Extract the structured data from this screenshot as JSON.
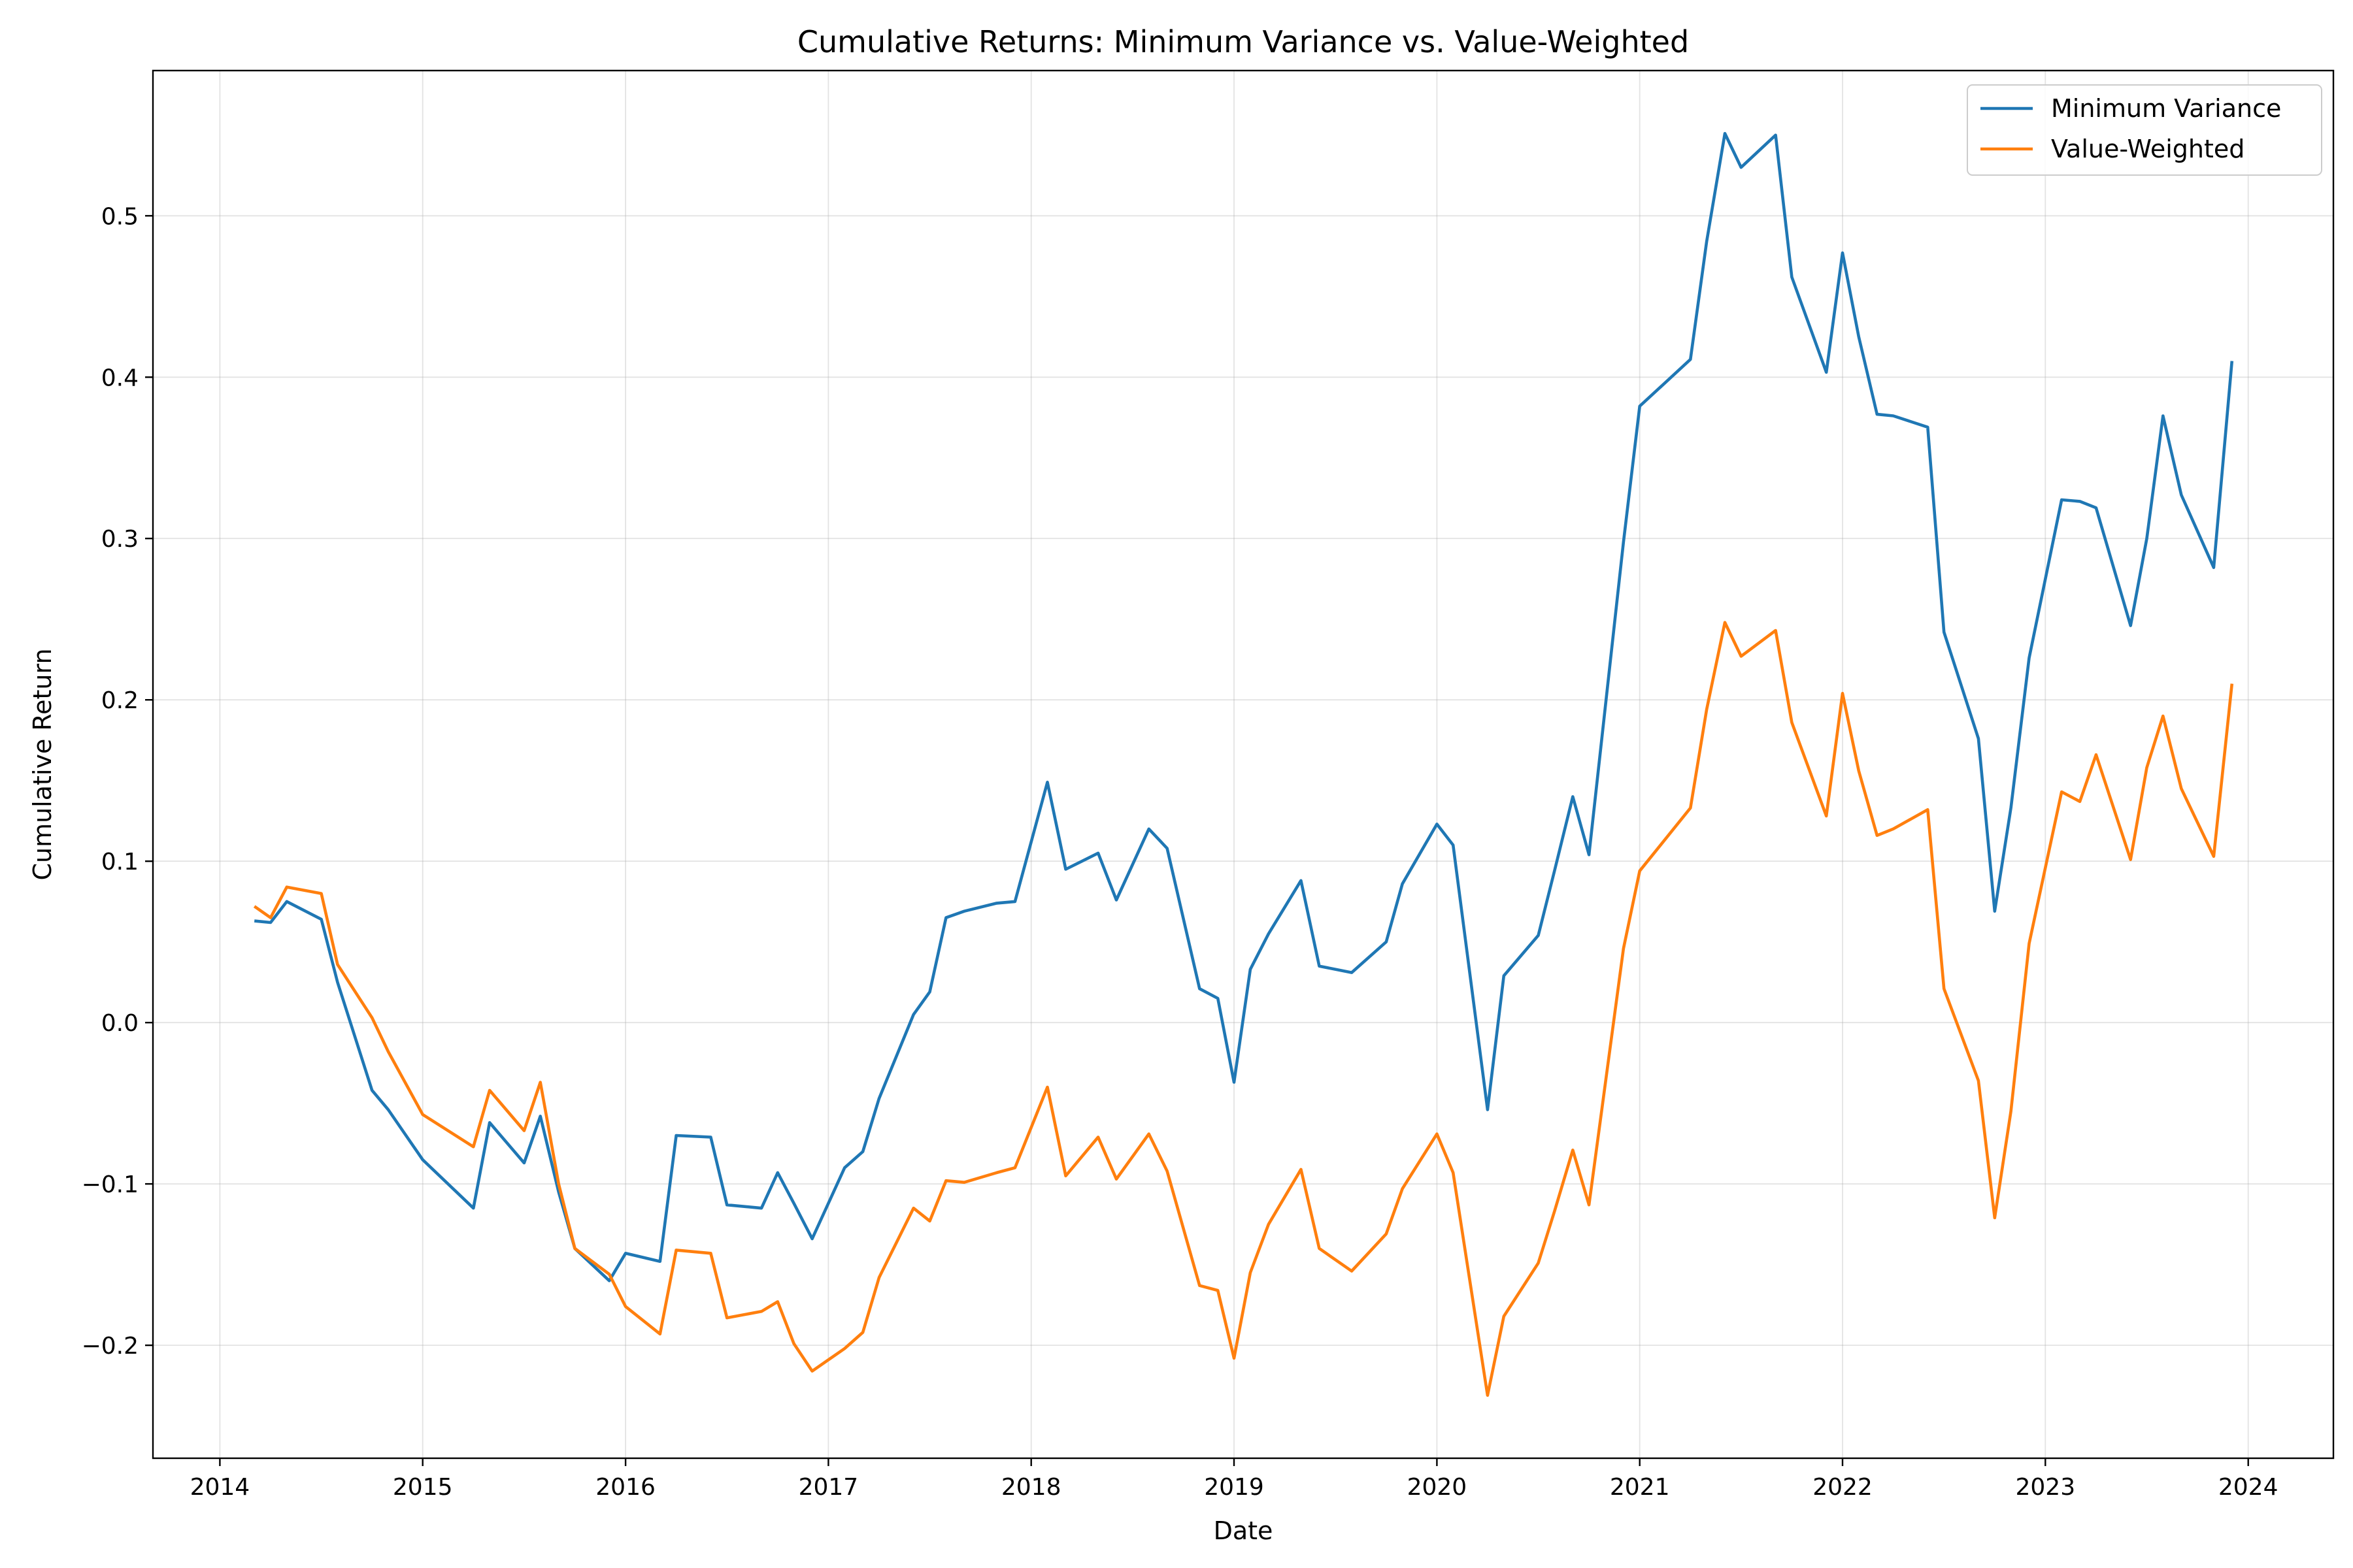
{
  "chart_data": {
    "type": "line",
    "title": "Cumulative Returns: Minimum Variance vs. Value-Weighted",
    "xlabel": "Date",
    "ylabel": "Cumulative Return",
    "xlim": [
      2013.67,
      2024.42
    ],
    "ylim": [
      -0.27,
      0.59
    ],
    "x_ticks": [
      2014,
      2015,
      2016,
      2017,
      2018,
      2019,
      2020,
      2021,
      2022,
      2023,
      2024
    ],
    "x_tick_labels": [
      "2014",
      "2015",
      "2016",
      "2017",
      "2018",
      "2019",
      "2020",
      "2021",
      "2022",
      "2023",
      "2024"
    ],
    "y_ticks": [
      -0.2,
      -0.1,
      0.0,
      0.1,
      0.2,
      0.3,
      0.4,
      0.5
    ],
    "y_tick_labels": [
      "−0.2",
      "−0.1",
      "0.0",
      "0.1",
      "0.2",
      "0.3",
      "0.4",
      "0.5"
    ],
    "grid": true,
    "legend_position": "top-right",
    "series": [
      {
        "name": "Minimum Variance",
        "color": "#1f77b4",
        "points": [
          [
            2014.17,
            0.063
          ],
          [
            2014.25,
            0.062
          ],
          [
            2014.33,
            0.075
          ],
          [
            2014.5,
            0.064
          ],
          [
            2014.58,
            0.025
          ],
          [
            2014.75,
            -0.042
          ],
          [
            2014.83,
            -0.054
          ],
          [
            2015.0,
            -0.085
          ],
          [
            2015.25,
            -0.115
          ],
          [
            2015.33,
            -0.062
          ],
          [
            2015.5,
            -0.087
          ],
          [
            2015.58,
            -0.058
          ],
          [
            2015.67,
            -0.105
          ],
          [
            2015.75,
            -0.14
          ],
          [
            2015.92,
            -0.16
          ],
          [
            2016.0,
            -0.143
          ],
          [
            2016.17,
            -0.148
          ],
          [
            2016.25,
            -0.07
          ],
          [
            2016.42,
            -0.071
          ],
          [
            2016.5,
            -0.113
          ],
          [
            2016.67,
            -0.115
          ],
          [
            2016.75,
            -0.093
          ],
          [
            2016.83,
            -0.112
          ],
          [
            2016.92,
            -0.134
          ],
          [
            2017.08,
            -0.09
          ],
          [
            2017.17,
            -0.08
          ],
          [
            2017.25,
            -0.047
          ],
          [
            2017.42,
            0.005
          ],
          [
            2017.5,
            0.019
          ],
          [
            2017.58,
            0.065
          ],
          [
            2017.67,
            0.069
          ],
          [
            2017.83,
            0.074
          ],
          [
            2017.92,
            0.075
          ],
          [
            2018.08,
            0.149
          ],
          [
            2018.17,
            0.095
          ],
          [
            2018.33,
            0.105
          ],
          [
            2018.42,
            0.076
          ],
          [
            2018.58,
            0.12
          ],
          [
            2018.67,
            0.108
          ],
          [
            2018.83,
            0.021
          ],
          [
            2018.92,
            0.015
          ],
          [
            2019.0,
            -0.037
          ],
          [
            2019.08,
            0.033
          ],
          [
            2019.17,
            0.055
          ],
          [
            2019.33,
            0.088
          ],
          [
            2019.42,
            0.035
          ],
          [
            2019.58,
            0.031
          ],
          [
            2019.75,
            0.05
          ],
          [
            2019.83,
            0.086
          ],
          [
            2020.0,
            0.123
          ],
          [
            2020.08,
            0.11
          ],
          [
            2020.25,
            -0.054
          ],
          [
            2020.33,
            0.029
          ],
          [
            2020.5,
            0.054
          ],
          [
            2020.58,
            0.094
          ],
          [
            2020.67,
            0.14
          ],
          [
            2020.75,
            0.104
          ],
          [
            2020.92,
            0.298
          ],
          [
            2021.0,
            0.382
          ],
          [
            2021.25,
            0.411
          ],
          [
            2021.33,
            0.484
          ],
          [
            2021.42,
            0.551
          ],
          [
            2021.5,
            0.53
          ],
          [
            2021.67,
            0.55
          ],
          [
            2021.75,
            0.462
          ],
          [
            2021.92,
            0.403
          ],
          [
            2022.0,
            0.477
          ],
          [
            2022.08,
            0.425
          ],
          [
            2022.17,
            0.377
          ],
          [
            2022.25,
            0.376
          ],
          [
            2022.42,
            0.369
          ],
          [
            2022.5,
            0.242
          ],
          [
            2022.67,
            0.176
          ],
          [
            2022.75,
            0.069
          ],
          [
            2022.83,
            0.133
          ],
          [
            2022.92,
            0.226
          ],
          [
            2023.08,
            0.324
          ],
          [
            2023.17,
            0.323
          ],
          [
            2023.25,
            0.319
          ],
          [
            2023.42,
            0.246
          ],
          [
            2023.5,
            0.3
          ],
          [
            2023.58,
            0.376
          ],
          [
            2023.67,
            0.327
          ],
          [
            2023.83,
            0.282
          ],
          [
            2023.92,
            0.41
          ]
        ]
      },
      {
        "name": "Value-Weighted",
        "color": "#ff7f0e",
        "points": [
          [
            2014.17,
            0.072
          ],
          [
            2014.25,
            0.065
          ],
          [
            2014.33,
            0.084
          ],
          [
            2014.5,
            0.08
          ],
          [
            2014.58,
            0.036
          ],
          [
            2014.75,
            0.003
          ],
          [
            2014.83,
            -0.018
          ],
          [
            2015.0,
            -0.057
          ],
          [
            2015.25,
            -0.077
          ],
          [
            2015.33,
            -0.042
          ],
          [
            2015.5,
            -0.067
          ],
          [
            2015.58,
            -0.037
          ],
          [
            2015.67,
            -0.1
          ],
          [
            2015.75,
            -0.14
          ],
          [
            2015.92,
            -0.156
          ],
          [
            2016.0,
            -0.176
          ],
          [
            2016.17,
            -0.193
          ],
          [
            2016.25,
            -0.141
          ],
          [
            2016.42,
            -0.143
          ],
          [
            2016.5,
            -0.183
          ],
          [
            2016.67,
            -0.179
          ],
          [
            2016.75,
            -0.173
          ],
          [
            2016.83,
            -0.199
          ],
          [
            2016.92,
            -0.216
          ],
          [
            2017.08,
            -0.202
          ],
          [
            2017.17,
            -0.192
          ],
          [
            2017.25,
            -0.158
          ],
          [
            2017.42,
            -0.115
          ],
          [
            2017.5,
            -0.123
          ],
          [
            2017.58,
            -0.098
          ],
          [
            2017.67,
            -0.099
          ],
          [
            2017.83,
            -0.093
          ],
          [
            2017.92,
            -0.09
          ],
          [
            2018.08,
            -0.04
          ],
          [
            2018.17,
            -0.095
          ],
          [
            2018.33,
            -0.071
          ],
          [
            2018.42,
            -0.097
          ],
          [
            2018.58,
            -0.069
          ],
          [
            2018.67,
            -0.092
          ],
          [
            2018.83,
            -0.163
          ],
          [
            2018.92,
            -0.166
          ],
          [
            2019.0,
            -0.208
          ],
          [
            2019.08,
            -0.155
          ],
          [
            2019.17,
            -0.125
          ],
          [
            2019.33,
            -0.091
          ],
          [
            2019.42,
            -0.14
          ],
          [
            2019.58,
            -0.154
          ],
          [
            2019.75,
            -0.131
          ],
          [
            2019.83,
            -0.103
          ],
          [
            2020.0,
            -0.069
          ],
          [
            2020.08,
            -0.093
          ],
          [
            2020.25,
            -0.231
          ],
          [
            2020.33,
            -0.182
          ],
          [
            2020.5,
            -0.149
          ],
          [
            2020.58,
            -0.117
          ],
          [
            2020.67,
            -0.079
          ],
          [
            2020.75,
            -0.113
          ],
          [
            2020.92,
            0.046
          ],
          [
            2021.0,
            0.094
          ],
          [
            2021.25,
            0.133
          ],
          [
            2021.33,
            0.194
          ],
          [
            2021.42,
            0.248
          ],
          [
            2021.5,
            0.227
          ],
          [
            2021.67,
            0.243
          ],
          [
            2021.75,
            0.186
          ],
          [
            2021.92,
            0.128
          ],
          [
            2022.0,
            0.204
          ],
          [
            2022.08,
            0.156
          ],
          [
            2022.17,
            0.116
          ],
          [
            2022.25,
            0.12
          ],
          [
            2022.42,
            0.132
          ],
          [
            2022.5,
            0.021
          ],
          [
            2022.67,
            -0.036
          ],
          [
            2022.75,
            -0.121
          ],
          [
            2022.83,
            -0.055
          ],
          [
            2022.92,
            0.049
          ],
          [
            2023.08,
            0.143
          ],
          [
            2023.17,
            0.137
          ],
          [
            2023.25,
            0.166
          ],
          [
            2023.42,
            0.101
          ],
          [
            2023.5,
            0.158
          ],
          [
            2023.58,
            0.19
          ],
          [
            2023.67,
            0.145
          ],
          [
            2023.83,
            0.103
          ],
          [
            2023.92,
            0.21
          ]
        ]
      }
    ]
  }
}
